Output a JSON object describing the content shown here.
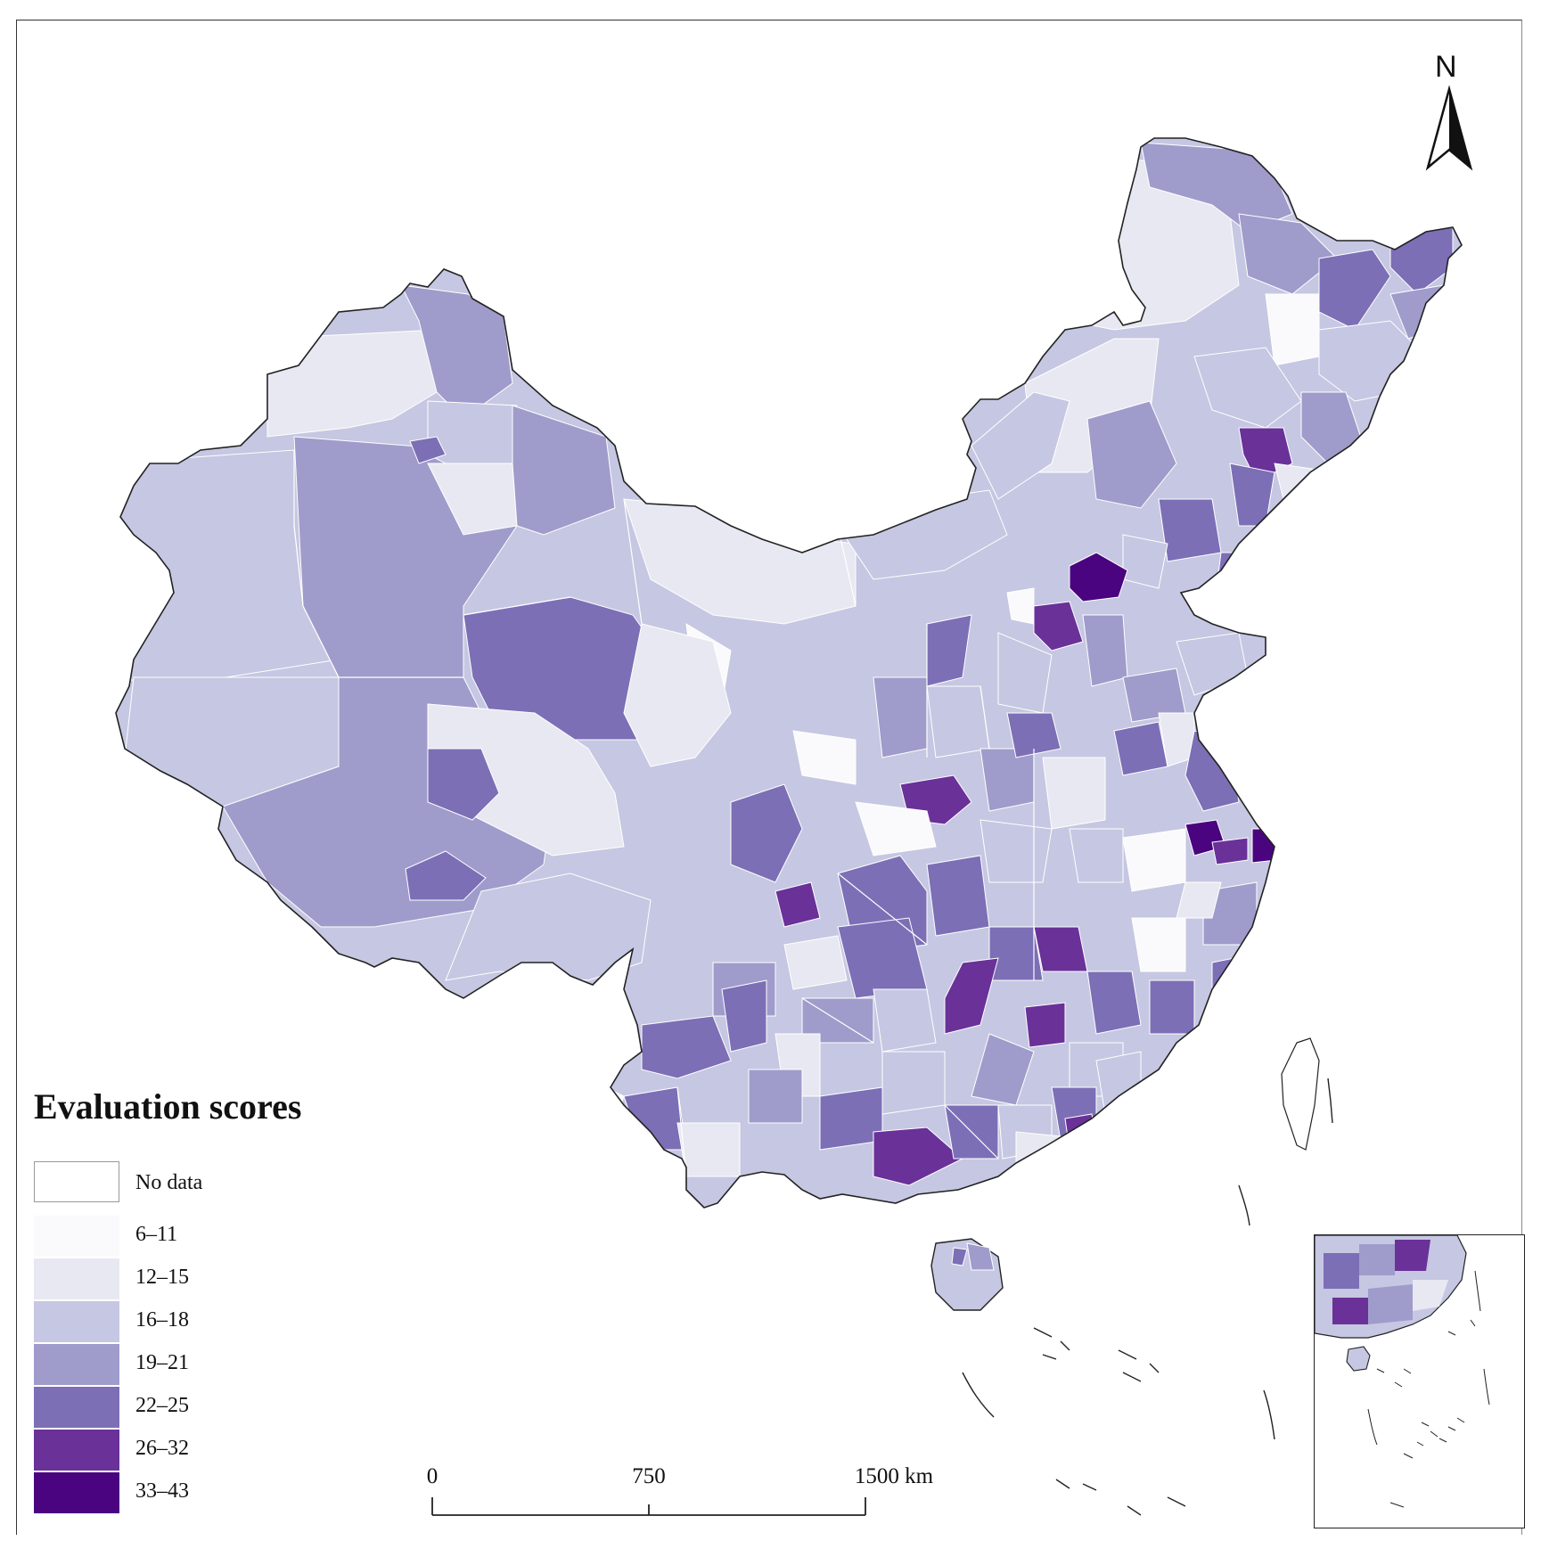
{
  "legend": {
    "title": "Evaluation scores",
    "no_data_label": "No data",
    "no_data_color": "#ffffff",
    "classes": [
      {
        "label": "6–11",
        "color": "#fafafc"
      },
      {
        "label": "12–15",
        "color": "#e8e8f2"
      },
      {
        "label": "16–18",
        "color": "#c6c7e2"
      },
      {
        "label": "19–21",
        "color": "#9f9ccb"
      },
      {
        "label": "22–25",
        "color": "#7c6fb6"
      },
      {
        "label": "26–32",
        "color": "#6a3199"
      },
      {
        "label": "33–43",
        "color": "#4a047f"
      }
    ]
  },
  "scale_bar": {
    "ticks": [
      {
        "label": "0",
        "km": 0
      },
      {
        "label": "750",
        "km": 750
      },
      {
        "label": "1500 km",
        "km": 1500
      }
    ]
  },
  "north_arrow": {
    "label": "N"
  },
  "colors": {
    "border": "#222222",
    "region_stroke": "#ffffff"
  }
}
